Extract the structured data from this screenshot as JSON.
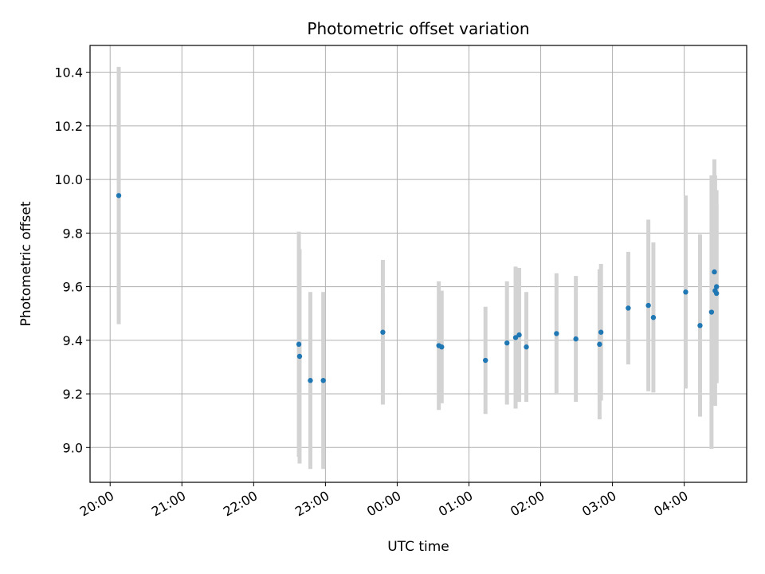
{
  "chart_data": {
    "type": "scatter",
    "title": "Photometric offset variation",
    "xlabel": "UTC time",
    "ylabel": "Photometric offset",
    "grid": true,
    "x_unit": "UTC time (hours after 20:00 on the first night)",
    "xlim": [
      -0.28,
      8.87
    ],
    "ylim": [
      8.87,
      10.5
    ],
    "x_ticks": [
      0,
      1,
      2,
      3,
      4,
      5,
      6,
      7,
      8
    ],
    "x_tick_labels": [
      "20:00",
      "21:00",
      "22:00",
      "23:00",
      "00:00",
      "01:00",
      "02:00",
      "03:00",
      "04:00"
    ],
    "y_ticks": [
      9.0,
      9.2,
      9.4,
      9.6,
      9.8,
      10.0,
      10.2,
      10.4
    ],
    "y_tick_labels": [
      "9.0",
      "9.2",
      "9.4",
      "9.6",
      "9.8",
      "10.0",
      "10.2",
      "10.4"
    ],
    "colors": {
      "points": "#1f77b4",
      "error_bars": "#d3d3d3",
      "grid": "#b0b0b0"
    },
    "series": [
      {
        "points": [
          {
            "x": 0.12,
            "y": 9.94,
            "yerr": 0.48
          },
          {
            "x": 2.63,
            "y": 9.385,
            "yerr": 0.42
          },
          {
            "x": 2.64,
            "y": 9.34,
            "yerr": 0.4
          },
          {
            "x": 2.79,
            "y": 9.25,
            "yerr": 0.33
          },
          {
            "x": 2.97,
            "y": 9.25,
            "yerr": 0.33
          },
          {
            "x": 3.8,
            "y": 9.43,
            "yerr": 0.27
          },
          {
            "x": 4.58,
            "y": 9.38,
            "yerr": 0.24
          },
          {
            "x": 4.62,
            "y": 9.375,
            "yerr": 0.21
          },
          {
            "x": 5.23,
            "y": 9.325,
            "yerr": 0.2
          },
          {
            "x": 5.53,
            "y": 9.39,
            "yerr": 0.23
          },
          {
            "x": 5.65,
            "y": 9.41,
            "yerr": 0.265
          },
          {
            "x": 5.7,
            "y": 9.42,
            "yerr": 0.25
          },
          {
            "x": 5.8,
            "y": 9.375,
            "yerr": 0.205
          },
          {
            "x": 6.22,
            "y": 9.425,
            "yerr": 0.225
          },
          {
            "x": 6.49,
            "y": 9.405,
            "yerr": 0.235
          },
          {
            "x": 6.82,
            "y": 9.385,
            "yerr": 0.28
          },
          {
            "x": 6.84,
            "y": 9.43,
            "yerr": 0.255
          },
          {
            "x": 7.22,
            "y": 9.52,
            "yerr": 0.21
          },
          {
            "x": 7.5,
            "y": 9.53,
            "yerr": 0.32
          },
          {
            "x": 7.57,
            "y": 9.485,
            "yerr": 0.28
          },
          {
            "x": 8.02,
            "y": 9.58,
            "yerr": 0.36
          },
          {
            "x": 8.22,
            "y": 9.455,
            "yerr": 0.34
          },
          {
            "x": 8.38,
            "y": 9.505,
            "yerr": 0.51
          },
          {
            "x": 8.42,
            "y": 9.655,
            "yerr": 0.42
          },
          {
            "x": 8.43,
            "y": 9.585,
            "yerr": 0.43
          },
          {
            "x": 8.45,
            "y": 9.6,
            "yerr": 0.36
          },
          {
            "x": 8.45,
            "y": 9.575,
            "yerr": 0.33
          }
        ]
      }
    ]
  }
}
